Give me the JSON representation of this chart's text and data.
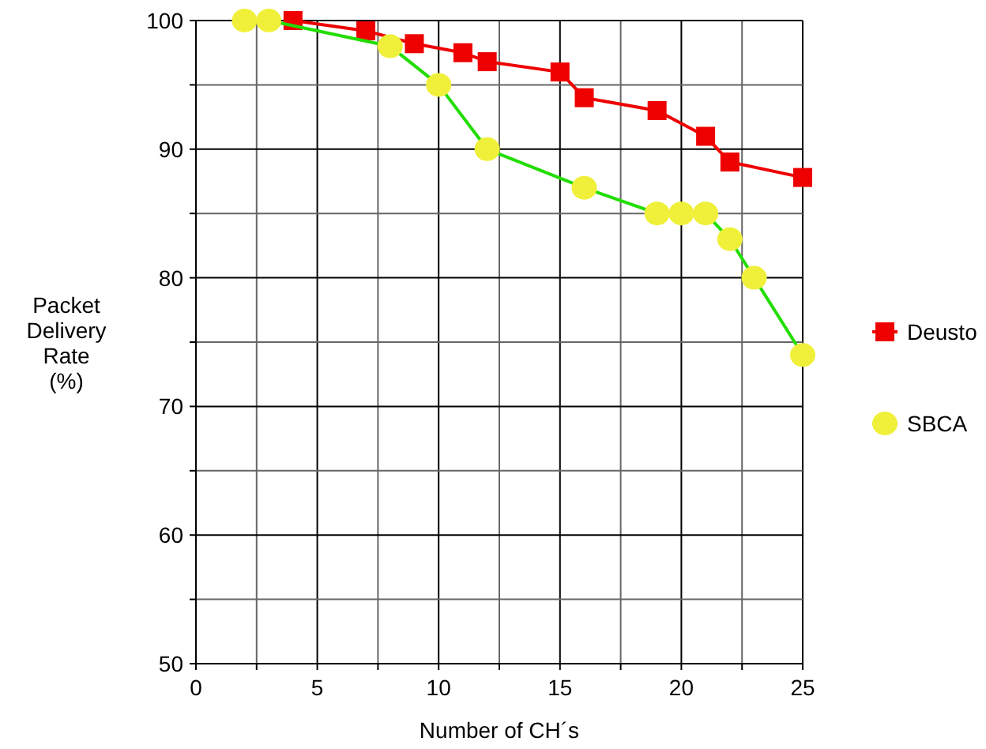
{
  "chart_data": {
    "type": "line",
    "xlabel": "Number of CH´s",
    "ylabel": "Packet Delivery Rate (%)",
    "xlim": [
      0,
      25
    ],
    "xticks": [
      0,
      {
        "value": 2.5,
        "label": null
      },
      5,
      {
        "value": 7.5,
        "label": null
      },
      10,
      {
        "value": 12.5,
        "label": null
      },
      15,
      {
        "value": 17.5,
        "label": null
      },
      20,
      {
        "value": 22.5,
        "label": null
      },
      25
    ],
    "ylim": [
      50,
      100
    ],
    "yticks": [
      50,
      {
        "value": 55,
        "label": null
      },
      60,
      {
        "value": 65,
        "label": null
      },
      70,
      {
        "value": 75,
        "label": null
      },
      80,
      {
        "value": 85,
        "label": null
      },
      90,
      {
        "value": 95,
        "label": null
      },
      100
    ],
    "grid": true,
    "legend": "right",
    "line_style": "solid",
    "series": [
      {
        "name": "Deusto",
        "color": "#ee0000",
        "marker": "square",
        "x": [
          4,
          7,
          9,
          11,
          12,
          15,
          16,
          19,
          21,
          22,
          25
        ],
        "values": [
          100,
          99.2,
          98.2,
          97.5,
          96.8,
          96,
          94,
          93,
          91,
          89,
          87.8
        ]
      },
      {
        "name": "SBCA",
        "color": "#22dd00",
        "colors": [
          "#f0f03a",
          "#f0f03a",
          "#f0f03a",
          "#f0f03a",
          "#f0f03a",
          "#f0f03a",
          "#f0f03a",
          "#f0f03a",
          "#f0f03a",
          "#f0f03a",
          "#f0f03a",
          "#f0f03a"
        ],
        "marker": "circle",
        "x": [
          2,
          3,
          8,
          10,
          12,
          16,
          19,
          20,
          21,
          22,
          23,
          25
        ],
        "values": [
          100,
          100,
          98,
          95,
          90,
          87,
          85,
          85,
          85,
          83,
          80,
          74
        ]
      }
    ]
  }
}
